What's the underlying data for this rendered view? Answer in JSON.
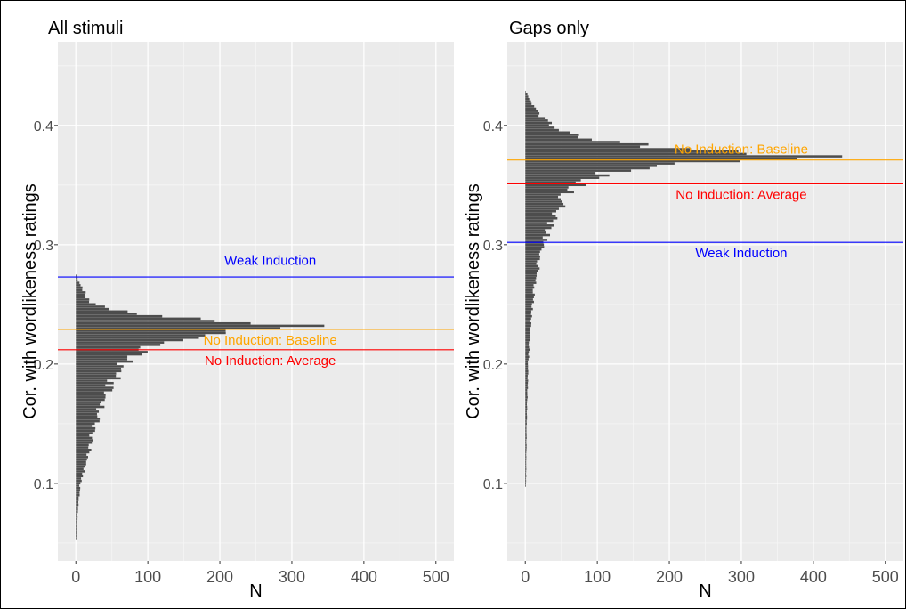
{
  "chart_data": [
    {
      "type": "bar",
      "orientation": "horizontal",
      "title": "All stimuli",
      "xlabel": "N",
      "ylabel": "Cor. with wordlikeness ratings",
      "xlim": [
        -25,
        525
      ],
      "ylim": [
        0.035,
        0.47
      ],
      "xticks": [
        0,
        100,
        200,
        300,
        400,
        500
      ],
      "yticks": [
        0.1,
        0.2,
        0.3,
        0.4
      ],
      "grid": true,
      "histogram": {
        "bin_width": 0.002,
        "peak_at": 0.232,
        "peak_count": 345,
        "min": 0.054,
        "max": 0.275,
        "profile": [
          [
            0.054,
            1
          ],
          [
            0.08,
            3
          ],
          [
            0.1,
            6
          ],
          [
            0.11,
            11
          ],
          [
            0.12,
            16
          ],
          [
            0.14,
            22
          ],
          [
            0.16,
            32
          ],
          [
            0.18,
            45
          ],
          [
            0.19,
            55
          ],
          [
            0.2,
            70
          ],
          [
            0.21,
            85
          ],
          [
            0.215,
            110
          ],
          [
            0.22,
            140
          ],
          [
            0.225,
            180
          ],
          [
            0.229,
            260
          ],
          [
            0.232,
            345
          ],
          [
            0.235,
            240
          ],
          [
            0.238,
            150
          ],
          [
            0.242,
            80
          ],
          [
            0.247,
            40
          ],
          [
            0.252,
            20
          ],
          [
            0.26,
            12
          ],
          [
            0.265,
            7
          ],
          [
            0.27,
            3
          ],
          [
            0.275,
            1
          ]
        ]
      },
      "reference_lines": [
        {
          "label": "Weak Induction",
          "value": 0.273,
          "color": "#0000ff",
          "label_at": 0.287
        },
        {
          "label": "No Induction: Baseline",
          "value": 0.229,
          "color": "#ffa500",
          "label_at": 0.22
        },
        {
          "label": "No Induction: Average",
          "value": 0.212,
          "color": "#ff0000",
          "label_at": 0.203
        }
      ],
      "label_x": 270
    },
    {
      "type": "bar",
      "orientation": "horizontal",
      "title": "Gaps only",
      "xlabel": "N",
      "ylabel": "Cor. with wordlikeness ratings",
      "xlim": [
        -25,
        525
      ],
      "ylim": [
        0.035,
        0.47
      ],
      "xticks": [
        0,
        100,
        200,
        300,
        400,
        500
      ],
      "yticks": [
        0.1,
        0.2,
        0.3,
        0.4
      ],
      "grid": true,
      "histogram": {
        "bin_width": 0.002,
        "peak_at": 0.374,
        "peak_count": 440,
        "min": 0.098,
        "max": 0.428,
        "profile": [
          [
            0.098,
            1
          ],
          [
            0.15,
            2
          ],
          [
            0.2,
            4
          ],
          [
            0.24,
            8
          ],
          [
            0.27,
            14
          ],
          [
            0.3,
            24
          ],
          [
            0.32,
            38
          ],
          [
            0.34,
            55
          ],
          [
            0.35,
            75
          ],
          [
            0.36,
            110
          ],
          [
            0.366,
            180
          ],
          [
            0.371,
            300
          ],
          [
            0.374,
            440
          ],
          [
            0.377,
            310
          ],
          [
            0.38,
            220
          ],
          [
            0.385,
            130
          ],
          [
            0.39,
            80
          ],
          [
            0.397,
            45
          ],
          [
            0.405,
            25
          ],
          [
            0.412,
            15
          ],
          [
            0.42,
            8
          ],
          [
            0.428,
            2
          ]
        ]
      },
      "reference_lines": [
        {
          "label": "No Induction: Baseline",
          "value": 0.371,
          "color": "#ffa500",
          "label_at": 0.38
        },
        {
          "label": "No Induction: Average",
          "value": 0.351,
          "color": "#ff0000",
          "label_at": 0.342
        },
        {
          "label": "Weak Induction",
          "value": 0.302,
          "color": "#0000ff",
          "label_at": 0.293
        }
      ],
      "label_x": 300
    }
  ]
}
